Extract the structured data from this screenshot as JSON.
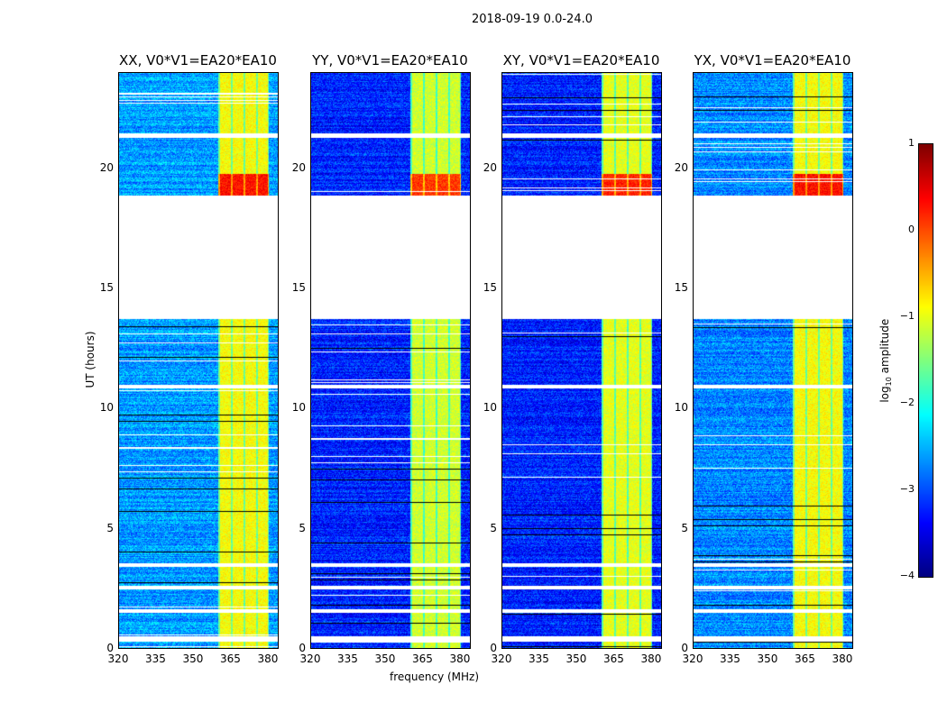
{
  "suptitle": "2018-09-19 0.0-24.0",
  "chart_data": {
    "type": "heatmap",
    "title": "2018-09-19 0.0-24.0",
    "xlabel": "frequency (MHz)",
    "ylabel": "UT (hours)",
    "xlim": [
      320,
      384
    ],
    "ylim": [
      0,
      24
    ],
    "xticks": [
      "320",
      "335",
      "350",
      "365",
      "380"
    ],
    "xtick_values": [
      320,
      335,
      350,
      365,
      380
    ],
    "yticks": [
      "0",
      "5",
      "10",
      "15",
      "20"
    ],
    "ytick_values": [
      0,
      5,
      10,
      15,
      20
    ],
    "panels": [
      {
        "title": "XX, V0*V1=EA20*EA10",
        "background_log10": -2.6,
        "band_log10": -0.9
      },
      {
        "title": "YY, V0*V1=EA20*EA10",
        "background_log10": -3.2,
        "band_log10": -1.1
      },
      {
        "title": "XY, V0*V1=EA20*EA10",
        "background_log10": -3.2,
        "band_log10": -1.0
      },
      {
        "title": "YX, V0*V1=EA20*EA10",
        "background_log10": -2.7,
        "band_log10": -0.9
      }
    ],
    "rfi_band_mhz": [
      360,
      380
    ],
    "strong_rfi_hours": [
      18.9,
      19.8
    ],
    "flagged_hours": [
      [
        13.75,
        18.9
      ],
      [
        21.3,
        21.5
      ],
      [
        10.85,
        11.0
      ],
      [
        3.4,
        3.55
      ],
      [
        2.45,
        2.6
      ],
      [
        1.5,
        1.62
      ],
      [
        0.3,
        0.5
      ]
    ],
    "colorbar": {
      "label": "log₁₀ amplitude",
      "label_main": "log",
      "label_sub": "10",
      "label_rest": " amplitude",
      "range": [
        -4,
        1
      ],
      "ticks": [
        "−4",
        "−3",
        "−2",
        "−1",
        "0",
        "1"
      ],
      "tick_values": [
        -4,
        -3,
        -2,
        -1,
        0,
        1
      ],
      "colormap": "jet"
    }
  }
}
